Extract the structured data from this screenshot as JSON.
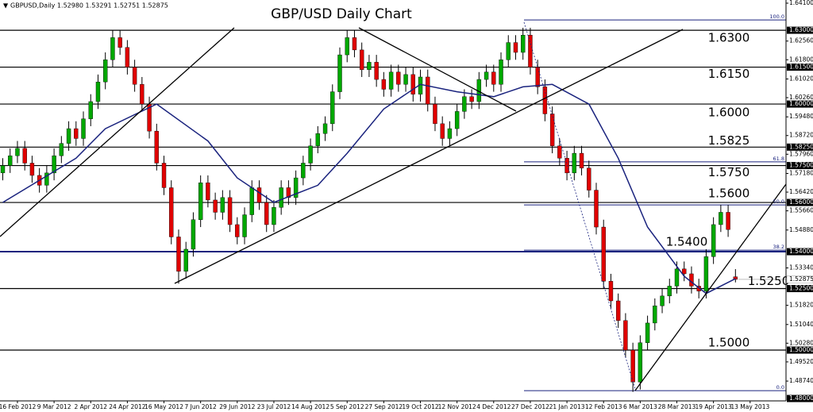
{
  "chart_data": {
    "type": "candlestick",
    "title": "GBP/USD Daily Chart",
    "symbol_info": "GBPUSD,Daily  1.52980 1.53291 1.52751 1.52875",
    "xlim": [
      -0.38,
      106.9
    ],
    "ylim": [
      1.48,
      1.641
    ],
    "xticks": [
      {
        "value": 2,
        "label": "16 Feb 2012"
      },
      {
        "value": 7,
        "label": "9 Mar 2012"
      },
      {
        "value": 12,
        "label": "2 Apr 2012"
      },
      {
        "value": 17,
        "label": "24 Apr 2012"
      },
      {
        "value": 22,
        "label": "16 May 2012"
      },
      {
        "value": 27,
        "label": "7 Jun 2012"
      },
      {
        "value": 32,
        "label": "29 Jun 2012"
      },
      {
        "value": 37,
        "label": "23 Jul 2012"
      },
      {
        "value": 42,
        "label": "14 Aug 2012"
      },
      {
        "value": 47,
        "label": "5 Sep 2012"
      },
      {
        "value": 52,
        "label": "27 Sep 2012"
      },
      {
        "value": 57,
        "label": "19 Oct 2012"
      },
      {
        "value": 62,
        "label": "12 Nov 2012"
      },
      {
        "value": 67,
        "label": "4 Dec 2012"
      },
      {
        "value": 72,
        "label": "27 Dec 2012"
      },
      {
        "value": 77,
        "label": "21 Jan 2013"
      },
      {
        "value": 82,
        "label": "12 Feb 2013"
      },
      {
        "value": 87,
        "label": "6 Mar 2013"
      },
      {
        "value": 92,
        "label": "28 Mar 2013"
      },
      {
        "value": 97,
        "label": "19 Apr 2013"
      },
      {
        "value": 102,
        "label": "13 May 2013"
      }
    ],
    "yticks": [
      {
        "value": 1.641,
        "label": "1.64100"
      },
      {
        "value": 1.6256,
        "label": "1.62560"
      },
      {
        "value": 1.618,
        "label": "1.61800"
      },
      {
        "value": 1.6102,
        "label": "1.61020"
      },
      {
        "value": 1.6026,
        "label": "1.60260"
      },
      {
        "value": 1.5948,
        "label": "1.59480"
      },
      {
        "value": 1.5872,
        "label": "1.58720"
      },
      {
        "value": 1.5796,
        "label": "1.57960"
      },
      {
        "value": 1.5718,
        "label": "1.57180"
      },
      {
        "value": 1.5642,
        "label": "1.56420"
      },
      {
        "value": 1.5566,
        "label": "1.55660"
      },
      {
        "value": 1.5488,
        "label": "1.54880"
      },
      {
        "value": 1.5334,
        "label": "1.53340"
      },
      {
        "value": 1.5182,
        "label": "1.51820"
      },
      {
        "value": 1.5104,
        "label": "1.51040"
      },
      {
        "value": 1.5028,
        "label": "1.50280"
      },
      {
        "value": 1.4952,
        "label": "1.49520"
      },
      {
        "value": 1.4874,
        "label": "1.48740"
      }
    ],
    "highlight_ticks": [
      {
        "value": 1.63,
        "label": "1.63000"
      },
      {
        "value": 1.615,
        "label": "1.61500"
      },
      {
        "value": 1.6,
        "label": "1.60000"
      },
      {
        "value": 1.5825,
        "label": "1.58250"
      },
      {
        "value": 1.575,
        "label": "1.57500"
      },
      {
        "value": 1.56,
        "label": "1.56000"
      },
      {
        "value": 1.54,
        "label": "1.54000"
      },
      {
        "value": 1.525,
        "label": "1.52500"
      },
      {
        "value": 1.5,
        "label": "1.50000"
      },
      {
        "value": 1.48,
        "label": "1.48000"
      }
    ],
    "last_price": {
      "value": 1.52875,
      "label": "1.52875"
    },
    "levels": [
      {
        "value": 1.63,
        "label": "1.6300"
      },
      {
        "value": 1.615,
        "label": "1.6150"
      },
      {
        "value": 1.6,
        "label": "1.6000"
      },
      {
        "value": 1.5825,
        "label": "1.5825"
      },
      {
        "value": 1.575,
        "label": "1.5750"
      },
      {
        "value": 1.56,
        "label": "1.5600"
      },
      {
        "value": 1.54,
        "label": "1.5400"
      },
      {
        "value": 1.525,
        "label": "1.5250"
      },
      {
        "value": 1.5,
        "label": "1.5000"
      }
    ],
    "fib_levels": [
      {
        "value": 1.6342,
        "label": "100.0"
      },
      {
        "value": 1.5765,
        "label": "61.8"
      },
      {
        "value": 1.559,
        "label": "50.0"
      },
      {
        "value": 1.5406,
        "label": "38.2"
      },
      {
        "value": 1.4835,
        "label": "0.0"
      }
    ],
    "up_color": "#00a800",
    "down_color": "#e00000",
    "wick_color": "#000000",
    "ma_color": "#1a237e",
    "open": [
      1.572,
      1.575,
      1.579,
      1.582,
      1.576,
      1.571,
      1.567,
      1.572,
      1.579,
      1.584,
      1.59,
      1.586,
      1.594,
      1.601,
      1.609,
      1.618,
      1.627,
      1.623,
      1.615,
      1.608,
      1.6,
      1.589,
      1.576,
      1.566,
      1.546,
      1.532,
      1.541,
      1.553,
      1.568,
      1.561,
      1.556,
      1.562,
      1.551,
      1.546,
      1.555,
      1.566,
      1.56,
      1.551,
      1.558,
      1.566,
      1.562,
      1.57,
      1.576,
      1.583,
      1.588,
      1.592,
      1.605,
      1.62,
      1.627,
      1.622,
      1.614,
      1.617,
      1.61,
      1.606,
      1.613,
      1.608,
      1.612,
      1.604,
      1.611,
      1.6,
      1.592,
      1.586,
      1.59,
      1.597,
      1.603,
      1.601,
      1.61,
      1.613,
      1.608,
      1.618,
      1.625,
      1.621,
      1.628,
      1.615,
      1.607,
      1.596,
      1.583,
      1.578,
      1.572,
      1.58,
      1.574,
      1.565,
      1.55,
      1.528,
      1.52,
      1.512,
      1.5,
      1.487,
      1.503,
      1.511,
      1.518,
      1.522,
      1.526,
      1.533,
      1.531,
      1.526,
      1.524,
      1.538,
      1.551,
      1.556,
      1.5298
    ],
    "high": [
      1.578,
      1.582,
      1.585,
      1.585,
      1.579,
      1.574,
      1.575,
      1.582,
      1.587,
      1.593,
      1.593,
      1.597,
      1.604,
      1.612,
      1.621,
      1.63,
      1.63,
      1.626,
      1.618,
      1.611,
      1.603,
      1.592,
      1.579,
      1.569,
      1.549,
      1.544,
      1.556,
      1.571,
      1.571,
      1.564,
      1.565,
      1.565,
      1.554,
      1.558,
      1.569,
      1.569,
      1.563,
      1.561,
      1.569,
      1.569,
      1.573,
      1.579,
      1.586,
      1.591,
      1.595,
      1.608,
      1.623,
      1.63,
      1.63,
      1.625,
      1.62,
      1.62,
      1.613,
      1.616,
      1.616,
      1.615,
      1.615,
      1.614,
      1.614,
      1.603,
      1.595,
      1.593,
      1.6,
      1.606,
      1.606,
      1.613,
      1.616,
      1.616,
      1.621,
      1.628,
      1.628,
      1.631,
      1.631,
      1.618,
      1.61,
      1.599,
      1.586,
      1.581,
      1.583,
      1.583,
      1.577,
      1.568,
      1.553,
      1.531,
      1.523,
      1.515,
      1.503,
      1.506,
      1.514,
      1.521,
      1.525,
      1.529,
      1.536,
      1.536,
      1.534,
      1.529,
      1.541,
      1.554,
      1.559,
      1.559,
      1.53291
    ],
    "low": [
      1.569,
      1.572,
      1.576,
      1.573,
      1.568,
      1.564,
      1.564,
      1.569,
      1.576,
      1.581,
      1.583,
      1.583,
      1.591,
      1.598,
      1.606,
      1.615,
      1.62,
      1.612,
      1.605,
      1.597,
      1.586,
      1.573,
      1.563,
      1.543,
      1.527,
      1.529,
      1.538,
      1.55,
      1.558,
      1.553,
      1.553,
      1.548,
      1.543,
      1.543,
      1.552,
      1.557,
      1.548,
      1.548,
      1.555,
      1.559,
      1.559,
      1.567,
      1.573,
      1.58,
      1.585,
      1.589,
      1.602,
      1.617,
      1.619,
      1.611,
      1.611,
      1.607,
      1.603,
      1.603,
      1.605,
      1.605,
      1.601,
      1.601,
      1.597,
      1.589,
      1.583,
      1.583,
      1.587,
      1.594,
      1.598,
      1.598,
      1.607,
      1.605,
      1.605,
      1.615,
      1.618,
      1.618,
      1.612,
      1.604,
      1.593,
      1.58,
      1.575,
      1.569,
      1.569,
      1.571,
      1.562,
      1.547,
      1.525,
      1.517,
      1.509,
      1.497,
      1.483,
      1.484,
      1.5,
      1.508,
      1.515,
      1.519,
      1.523,
      1.528,
      1.523,
      1.521,
      1.521,
      1.535,
      1.548,
      1.546,
      1.52751
    ],
    "close": [
      1.575,
      1.579,
      1.582,
      1.576,
      1.571,
      1.567,
      1.572,
      1.579,
      1.584,
      1.59,
      1.586,
      1.594,
      1.601,
      1.609,
      1.618,
      1.627,
      1.623,
      1.615,
      1.608,
      1.6,
      1.589,
      1.576,
      1.566,
      1.546,
      1.532,
      1.541,
      1.553,
      1.568,
      1.561,
      1.556,
      1.562,
      1.551,
      1.546,
      1.555,
      1.566,
      1.56,
      1.551,
      1.558,
      1.566,
      1.562,
      1.57,
      1.576,
      1.583,
      1.588,
      1.592,
      1.605,
      1.62,
      1.627,
      1.622,
      1.614,
      1.617,
      1.61,
      1.606,
      1.613,
      1.608,
      1.612,
      1.604,
      1.611,
      1.6,
      1.592,
      1.586,
      1.59,
      1.597,
      1.603,
      1.601,
      1.61,
      1.613,
      1.608,
      1.618,
      1.625,
      1.621,
      1.628,
      1.615,
      1.607,
      1.596,
      1.583,
      1.578,
      1.572,
      1.58,
      1.574,
      1.565,
      1.55,
      1.528,
      1.52,
      1.512,
      1.5,
      1.487,
      1.503,
      1.511,
      1.518,
      1.522,
      1.526,
      1.533,
      1.531,
      1.526,
      1.524,
      1.538,
      1.551,
      1.556,
      1.549,
      1.52875
    ],
    "moving_average": {
      "x": [
        0,
        10,
        14,
        21,
        28,
        32,
        37,
        43,
        47,
        52,
        57,
        62,
        67,
        71,
        75,
        80,
        84,
        88,
        93,
        96,
        100
      ],
      "values": [
        1.56,
        1.578,
        1.59,
        1.6,
        1.585,
        1.57,
        1.56,
        1.567,
        1.58,
        1.598,
        1.608,
        1.605,
        1.603,
        1.607,
        1.608,
        1.6,
        1.578,
        1.55,
        1.53,
        1.523,
        1.529
      ]
    }
  }
}
